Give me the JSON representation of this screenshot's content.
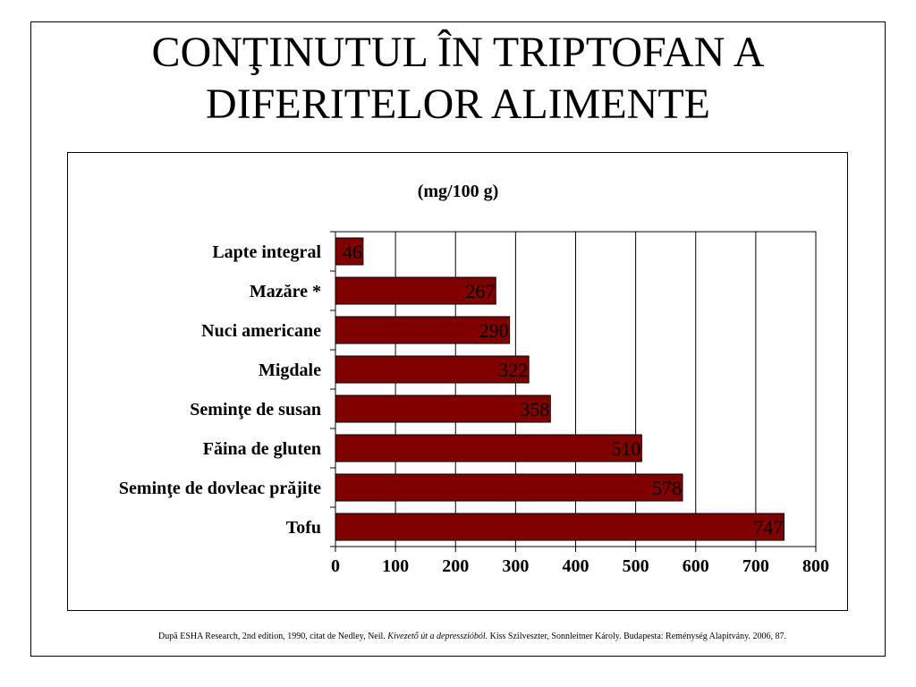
{
  "slide": {
    "title_line1": "CONŢINUTUL ÎN TRIPTOFAN A",
    "title_line2": "DIFERITELOR ALIMENTE"
  },
  "footnote": {
    "part1": "După ESHA Research, 2nd edition, 1990, citat de Nedley, Neil. ",
    "italic": "Kivezető út a depresszióból.",
    "part2": " Kiss Szilveszter, Sonnleitner Károly. Budapesta: Reménység Alapitvány. 2006, 87."
  },
  "chart_data": {
    "type": "bar",
    "orientation": "horizontal",
    "title": "(mg/100 g)",
    "categories": [
      "Lapte integral",
      "Mazăre *",
      "Nuci americane",
      "Migdale",
      "Seminţe de susan",
      "Făina de gluten",
      "Seminţe de dovleac prăjite",
      "Tofu"
    ],
    "values": [
      46,
      267,
      290,
      322,
      358,
      510,
      578,
      747
    ],
    "xlim": [
      0,
      800
    ],
    "xticks": [
      0,
      100,
      200,
      300,
      400,
      500,
      600,
      700,
      800
    ],
    "grid": true,
    "legend": "none",
    "bar_color": "#800000",
    "data_labels": true
  }
}
